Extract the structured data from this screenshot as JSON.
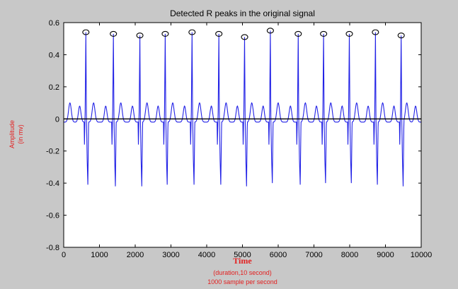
{
  "chart_data": {
    "type": "line",
    "title": "Detected R peaks in the original signal",
    "xlabel": "Time",
    "xlabel_notes": [
      "(duration,10 second)",
      "1000 sample per second"
    ],
    "ylabel": "Amplitude",
    "ylabel_unit": "(in mv)",
    "xlim": [
      0,
      10000
    ],
    "ylim": [
      -0.8,
      0.6
    ],
    "xticks": [
      "0",
      "1000",
      "2000",
      "3000",
      "4000",
      "5000",
      "6000",
      "7000",
      "8000",
      "9000",
      "10000"
    ],
    "yticks": [
      "0.6",
      "0.4",
      "0.2",
      "0",
      "-0.2",
      "-0.4",
      "-0.6",
      "-0.8"
    ],
    "grid": false,
    "peaks": {
      "x": [
        620,
        1390,
        2130,
        2840,
        3590,
        4340,
        5060,
        5780,
        6560,
        7270,
        7990,
        8720,
        9440
      ],
      "y": [
        0.54,
        0.53,
        0.52,
        0.53,
        0.54,
        0.53,
        0.51,
        0.55,
        0.53,
        0.53,
        0.53,
        0.54,
        0.52
      ]
    },
    "troughs": [
      -0.41,
      -0.42,
      -0.42,
      -0.41,
      -0.41,
      -0.41,
      -0.42,
      -0.4,
      -0.41,
      -0.4,
      -0.4,
      -0.41,
      -0.42
    ]
  },
  "colors": {
    "signal": "#2222e6",
    "marker": "#000000",
    "background": "#c8c8c8",
    "plot_area": "#ffffff",
    "label": "#e32020"
  }
}
